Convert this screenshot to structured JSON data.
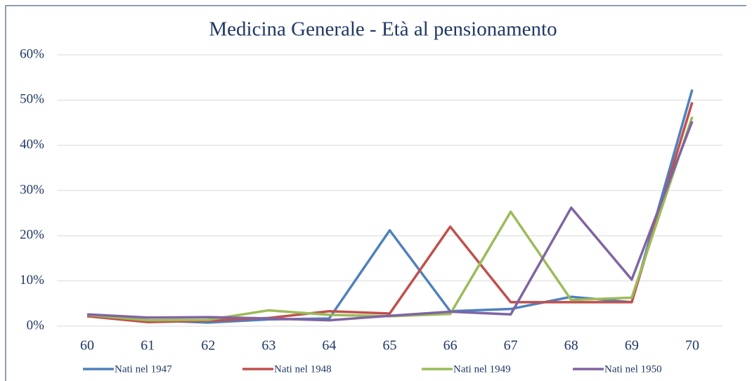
{
  "chart_data": {
    "type": "line",
    "title": "Medicina Generale - Età al pensionamento",
    "categories": [
      "60",
      "61",
      "62",
      "63",
      "64",
      "65",
      "66",
      "67",
      "68",
      "69",
      "70"
    ],
    "series": [
      {
        "name": "Nati nel 1947",
        "color": "#4f81bd",
        "values": [
          2.5,
          1.3,
          0.8,
          1.5,
          1.7,
          21.2,
          3.3,
          3.8,
          6.5,
          5.3,
          52.3
        ]
      },
      {
        "name": "Nati nel 1948",
        "color": "#c0504d",
        "values": [
          2.2,
          0.9,
          1.2,
          1.8,
          3.3,
          2.8,
          22.0,
          5.3,
          5.3,
          5.3,
          49.5
        ]
      },
      {
        "name": "Nati nel 1949",
        "color": "#9bbb59",
        "values": [
          2.5,
          1.3,
          1.4,
          3.5,
          2.5,
          2.2,
          2.7,
          25.3,
          5.8,
          6.3,
          46.3
        ]
      },
      {
        "name": "Nati nel 1950",
        "color": "#8064a2",
        "values": [
          2.6,
          1.9,
          2.0,
          1.7,
          1.3,
          2.3,
          3.2,
          2.6,
          26.2,
          10.3,
          45.3
        ]
      }
    ],
    "ylim": [
      0,
      60
    ],
    "yticks": [
      {
        "value": 0,
        "label": "0%"
      },
      {
        "value": 10,
        "label": "10%"
      },
      {
        "value": 20,
        "label": "20%"
      },
      {
        "value": 30,
        "label": "30%"
      },
      {
        "value": 40,
        "label": "40%"
      },
      {
        "value": 50,
        "label": "50%"
      },
      {
        "value": 60,
        "label": "60%"
      }
    ],
    "grid": true,
    "legend": "bottom"
  }
}
